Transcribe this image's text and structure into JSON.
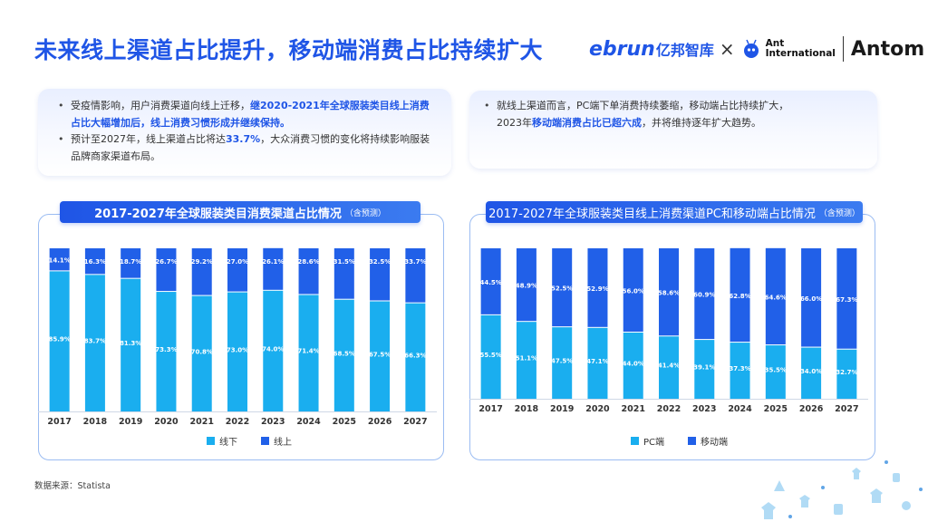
{
  "header": {
    "title": "未来线上渠道占比提升，移动端消费占比持续扩大",
    "logo_ebrun": "ebrun",
    "logo_ebrun_cn": "亿邦智库",
    "logo_x": "×",
    "logo_ant_line1": "Ant",
    "logo_ant_line2": "International",
    "logo_antom": "Antom"
  },
  "left_card": {
    "b1_pre": "受疫情影响，用户消费渠道向线上迁移，",
    "b1_hl": "继2020-2021年全球服装类目线上消费占比大幅增加后，线上消费习惯形成并继续保持。",
    "b2_pre": "预计至2027年，线上渠道占比将达",
    "b2_hl": "33.7%",
    "b2_post": "，大众消费习惯的变化将持续影响服装品牌商家渠道布局。"
  },
  "right_card": {
    "b1_line1": "就线上渠道而言，PC端下单消费持续萎缩，移动端占比持续扩大，",
    "b1_pre": "2023年",
    "b1_hl": "移动端消费占比已超六成",
    "b1_post": "，并将维持逐年扩大趋势。"
  },
  "source": "数据来源：Statista",
  "colors": {
    "brand_blue": "#1f55e6",
    "offline": "#1aaeef",
    "online": "#2160e8",
    "pc": "#1aaeef",
    "mobile": "#2160e8"
  },
  "chart_data": [
    {
      "type": "bar",
      "stacked": true,
      "percent": true,
      "title": "2017-2027年全球服装类目消费渠道占比情况",
      "title_note": "（含预测）",
      "categories": [
        "2017",
        "2018",
        "2019",
        "2020",
        "2021",
        "2022",
        "2023",
        "2024",
        "2025",
        "2026",
        "2027"
      ],
      "series": [
        {
          "name": "线下",
          "values": [
            85.9,
            83.7,
            81.3,
            73.3,
            70.8,
            73.0,
            74.0,
            71.4,
            68.5,
            67.5,
            66.3
          ],
          "labels": [
            "85.9%",
            "83.7%",
            "81.3%",
            "73.3%",
            "70.8%",
            "73.0%",
            "74.0%",
            "71.4%",
            "68.5%",
            "67.5%",
            "66.3%"
          ]
        },
        {
          "name": "线上",
          "values": [
            14.1,
            16.3,
            18.7,
            26.7,
            29.2,
            27.0,
            26.1,
            28.6,
            31.5,
            32.5,
            33.7
          ],
          "labels": [
            "14.1%",
            "16.3%",
            "18.7%",
            "26.7%",
            "29.2%",
            "27.0%",
            "26.1%",
            "28.6%",
            "31.5%",
            "32.5%",
            "33.7%"
          ]
        }
      ],
      "legend_position": "bottom",
      "ylim": [
        0,
        100
      ]
    },
    {
      "type": "bar",
      "stacked": true,
      "percent": true,
      "title": "2017-2027年全球服装类目线上消费渠道PC和移动端占比情况",
      "title_note": "（含预测）",
      "categories": [
        "2017",
        "2018",
        "2019",
        "2020",
        "2021",
        "2022",
        "2023",
        "2024",
        "2025",
        "2026",
        "2027"
      ],
      "series": [
        {
          "name": "PC端",
          "values": [
            55.5,
            51.1,
            47.5,
            47.1,
            44.0,
            41.4,
            39.1,
            37.3,
            35.5,
            34.0,
            32.7
          ],
          "labels": [
            "55.5%",
            "51.1%",
            "47.5%",
            "47.1%",
            "44.0%",
            "41.4%",
            "39.1%",
            "37.3%",
            "35.5%",
            "34.0%",
            "32.7%"
          ]
        },
        {
          "name": "移动端",
          "values": [
            44.5,
            48.9,
            52.5,
            52.9,
            56.0,
            58.6,
            60.9,
            62.8,
            64.6,
            66.0,
            67.3
          ],
          "labels": [
            "44.5%",
            "48.9%",
            "52.5%",
            "52.9%",
            "56.0%",
            "58.6%",
            "60.9%",
            "62.8%",
            "64.6%",
            "66.0%",
            "67.3%"
          ]
        }
      ],
      "legend_position": "bottom",
      "ylim": [
        0,
        100
      ]
    }
  ]
}
